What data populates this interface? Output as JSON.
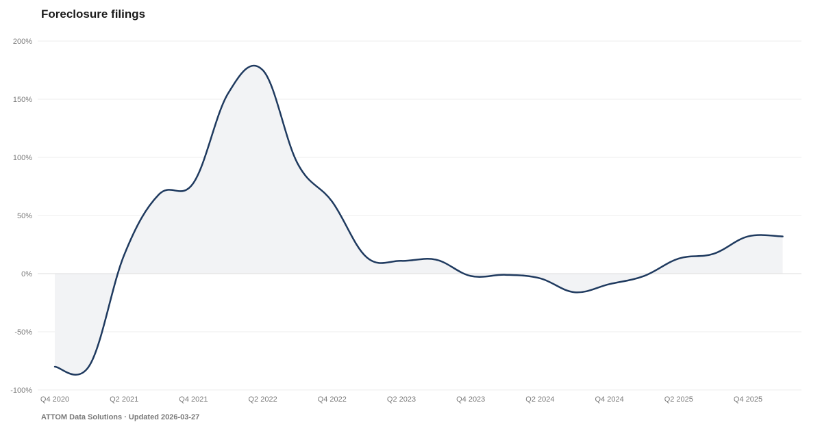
{
  "title": "Foreclosure filings",
  "footer": "ATTOM Data Solutions · Updated 2026-03-27",
  "colors": {
    "line": "#1f3a5f",
    "area": "#f2f3f5",
    "grid": "#ececec",
    "zero_line": "#dddddd",
    "tick_text": "#7a7a7a"
  },
  "chart_data": {
    "type": "line",
    "title": "Foreclosure filings",
    "xlabel": "",
    "ylabel": "",
    "ylim": [
      -100,
      200
    ],
    "y_ticks": [
      200,
      150,
      100,
      50,
      0,
      -50,
      -100
    ],
    "y_tick_labels": [
      "200%",
      "150%",
      "100%",
      "50%",
      "0%",
      "-50%",
      "-100%"
    ],
    "grid": true,
    "legend": "none",
    "x": [
      "Q4 2020",
      "Q1 2021",
      "Q2 2021",
      "Q3 2021",
      "Q4 2021",
      "Q1 2022",
      "Q2 2022",
      "Q3 2022",
      "Q4 2022",
      "Q1 2023",
      "Q2 2023",
      "Q3 2023",
      "Q4 2023",
      "Q1 2024",
      "Q2 2024",
      "Q3 2024",
      "Q4 2024",
      "Q1 2025",
      "Q2 2025",
      "Q3 2025",
      "Q4 2025",
      "Q1 2026"
    ],
    "x_tick_labels": [
      "Q4 2020",
      "Q2 2021",
      "Q4 2021",
      "Q2 2022",
      "Q4 2022",
      "Q2 2023",
      "Q4 2023",
      "Q2 2024",
      "Q4 2024",
      "Q2 2025",
      "Q4 2025"
    ],
    "series": [
      {
        "values": [
          -80,
          -79,
          16,
          68,
          78,
          155,
          175,
          95,
          62,
          14,
          11,
          12,
          -2,
          -1,
          -4,
          -16,
          -9,
          -2,
          13,
          17,
          32,
          32
        ]
      }
    ]
  }
}
